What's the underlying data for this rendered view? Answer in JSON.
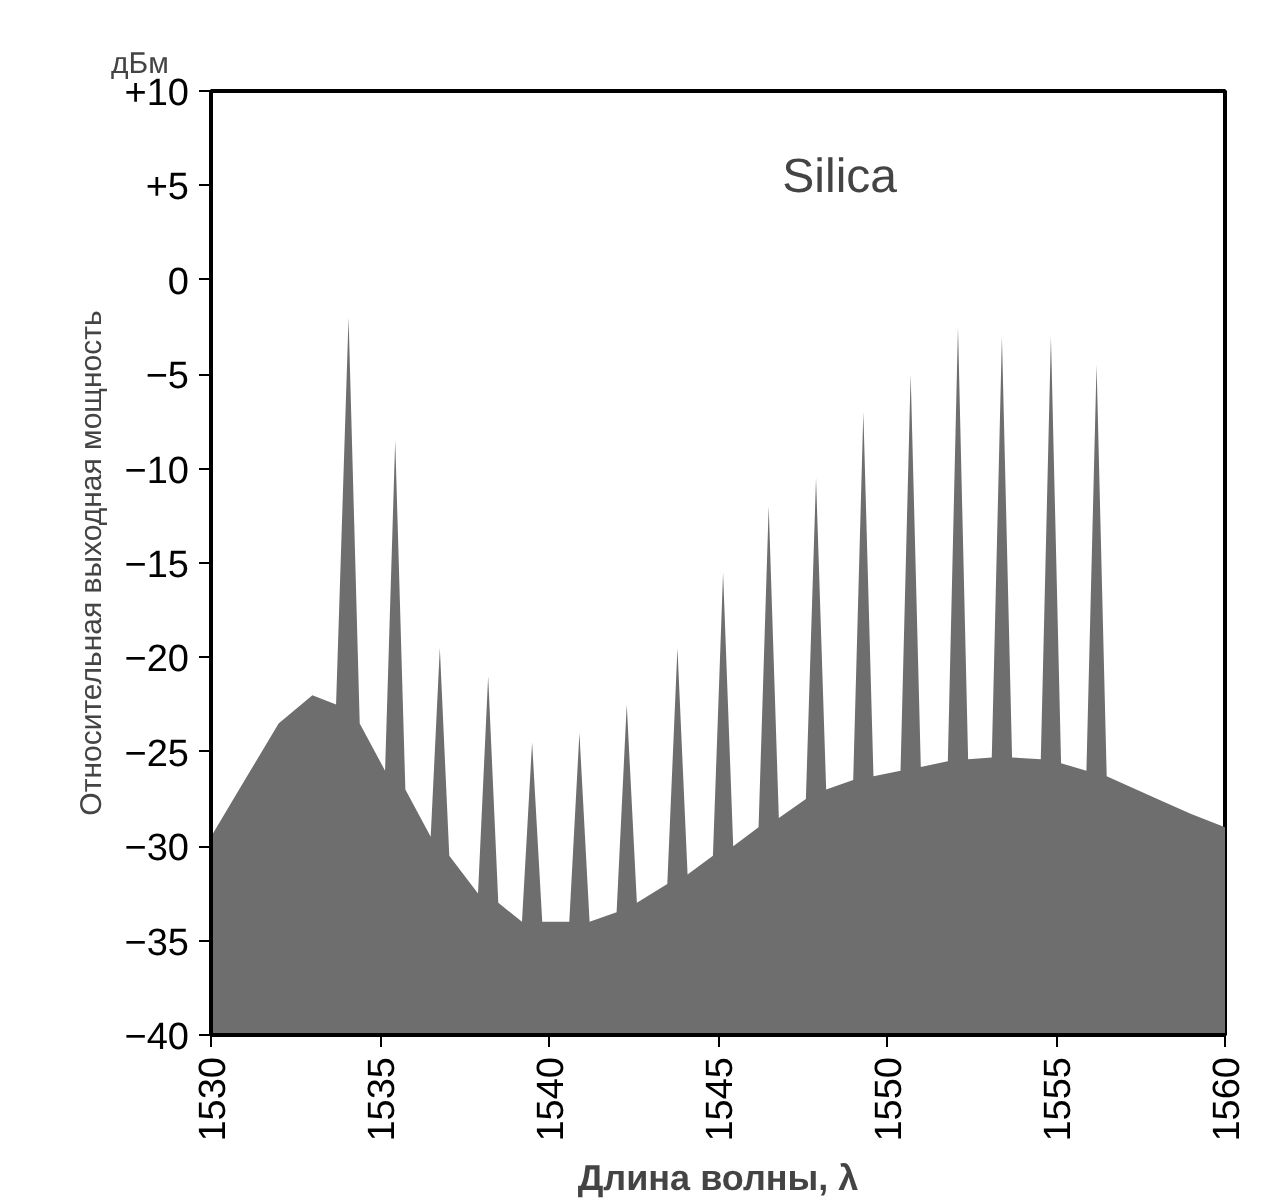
{
  "chart_data": {
    "type": "area",
    "xlabel": "Длина волны, λ",
    "ylabel": "Относительная выходная мощность",
    "annotations": [
      "Silica",
      "дБм"
    ],
    "x": [
      1530,
      1531,
      1532,
      1533,
      1533.7,
      1534.07,
      1534.4,
      1535.15,
      1535.45,
      1535.75,
      1536.5,
      1536.77,
      1537.05,
      1537.9,
      1538.2,
      1538.5,
      1539.2,
      1539.5,
      1539.8,
      1540.6,
      1540.9,
      1541.2,
      1542.0,
      1542.3,
      1542.6,
      1543.5,
      1543.8,
      1544.1,
      1544.85,
      1545.15,
      1545.45,
      1546.2,
      1546.5,
      1546.8,
      1547.6,
      1547.9,
      1548.2,
      1549.0,
      1549.3,
      1549.6,
      1550.4,
      1550.7,
      1551.0,
      1551.8,
      1552.1,
      1552.4,
      1553.1,
      1553.4,
      1553.7,
      1554.55,
      1554.85,
      1555.15,
      1555.9,
      1556.2,
      1556.5,
      1558,
      1559,
      1560
    ],
    "series": [
      {
        "color": "#6e6e6e",
        "values": [
          -29.5,
          -26.5,
          -23.5,
          -22,
          -22.5,
          -2,
          -23.5,
          -26,
          -8.5,
          -27,
          -29.5,
          -19.5,
          -30.5,
          -32.5,
          -21,
          -33,
          -34,
          -24.5,
          -34,
          -34,
          -24,
          -34,
          -33.5,
          -22.5,
          -33,
          -32,
          -19.5,
          -31.5,
          -30.5,
          -15.5,
          -30,
          -29,
          -12,
          -28.5,
          -27.5,
          -10.5,
          -27,
          -26.5,
          -7,
          -26.3,
          -26,
          -5,
          -25.8,
          -25.5,
          -2.5,
          -25.4,
          -25.3,
          -3,
          -25.3,
          -25.4,
          -3,
          -25.6,
          -26,
          -4.5,
          -26.3,
          -27.5,
          -28.3,
          -29
        ]
      }
    ],
    "xlim": [
      1530,
      1560
    ],
    "xticks": [
      1530,
      1535,
      1540,
      1545,
      1550,
      1555,
      1560
    ],
    "ylim": [
      -40,
      10
    ],
    "yticks": [
      {
        "value": 10,
        "label": "+10"
      },
      {
        "value": 5,
        "label": "+5"
      },
      0,
      -5,
      -10,
      -15,
      -20,
      -25,
      -30,
      -35,
      -40
    ],
    "grid": false
  }
}
